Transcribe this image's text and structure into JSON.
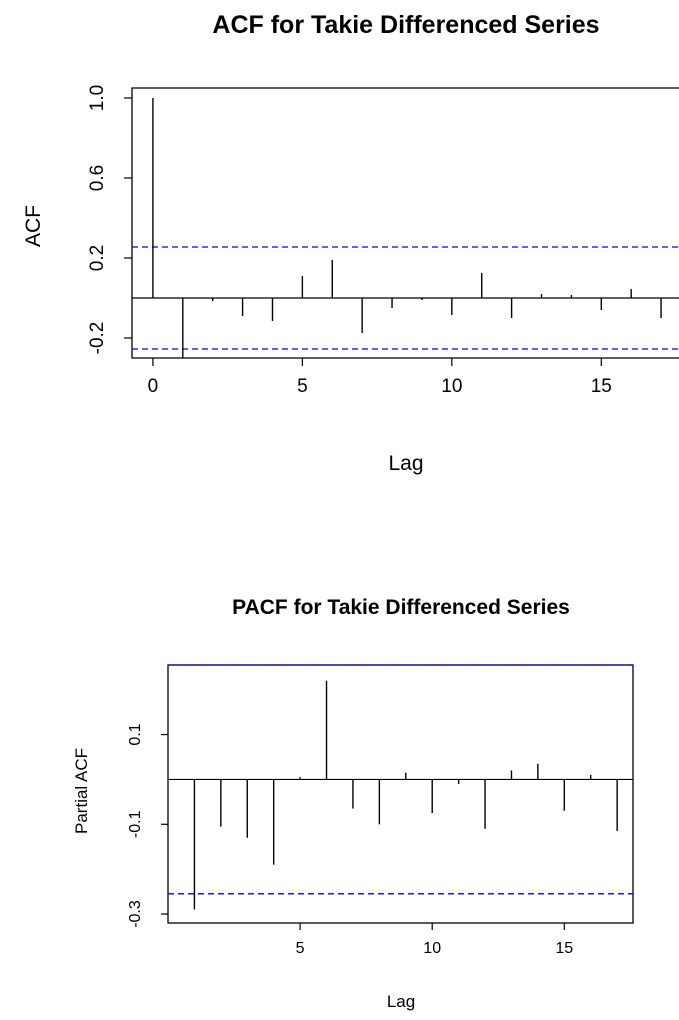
{
  "colors": {
    "ci_line": "#0000ff",
    "spike": "#000000",
    "frame": "#000000"
  },
  "chart_data": [
    {
      "type": "bar",
      "title": "ACF for Takie Differenced Series",
      "xlabel": "Lag",
      "ylabel": "ACF",
      "xlim": [
        -0.7,
        17.6
      ],
      "ylim": [
        -0.3,
        1.05
      ],
      "xticks": [
        0,
        5,
        10,
        15
      ],
      "xtick_labels": [
        "0",
        "5",
        "10",
        "15"
      ],
      "yticks": [
        -0.2,
        0.2,
        0.6,
        1.0
      ],
      "ytick_labels": [
        "-0.2",
        "0.2",
        "0.6",
        "1.0"
      ],
      "ci": 0.255,
      "lags": [
        0,
        1,
        2,
        3,
        4,
        5,
        6,
        7,
        8,
        9,
        10,
        11,
        12,
        13,
        14,
        15,
        16,
        17
      ],
      "values": [
        1.0,
        -0.3,
        -0.015,
        -0.09,
        -0.115,
        0.11,
        0.19,
        -0.175,
        -0.05,
        -0.01,
        -0.085,
        0.125,
        -0.1,
        0.02,
        0.015,
        -0.06,
        0.045,
        -0.1
      ]
    },
    {
      "type": "bar",
      "title": "PACF for Takie Differenced Series",
      "xlabel": "Lag",
      "ylabel": "Partial ACF",
      "xlim": [
        0.0,
        17.6
      ],
      "ylim": [
        -0.32,
        0.255
      ],
      "xticks": [
        5,
        10,
        15
      ],
      "xtick_labels": [
        "5",
        "10",
        "15"
      ],
      "yticks": [
        -0.3,
        -0.1,
        0.1
      ],
      "ytick_labels": [
        "-0.3",
        "-0.1",
        "0.1"
      ],
      "ci": 0.255,
      "lags": [
        1,
        2,
        3,
        4,
        5,
        6,
        7,
        8,
        9,
        10,
        11,
        12,
        13,
        14,
        15,
        16,
        17
      ],
      "values": [
        -0.29,
        -0.105,
        -0.13,
        -0.19,
        0.005,
        0.22,
        -0.065,
        -0.1,
        0.015,
        -0.075,
        -0.01,
        -0.11,
        0.02,
        0.035,
        -0.07,
        0.01,
        -0.115
      ]
    }
  ]
}
